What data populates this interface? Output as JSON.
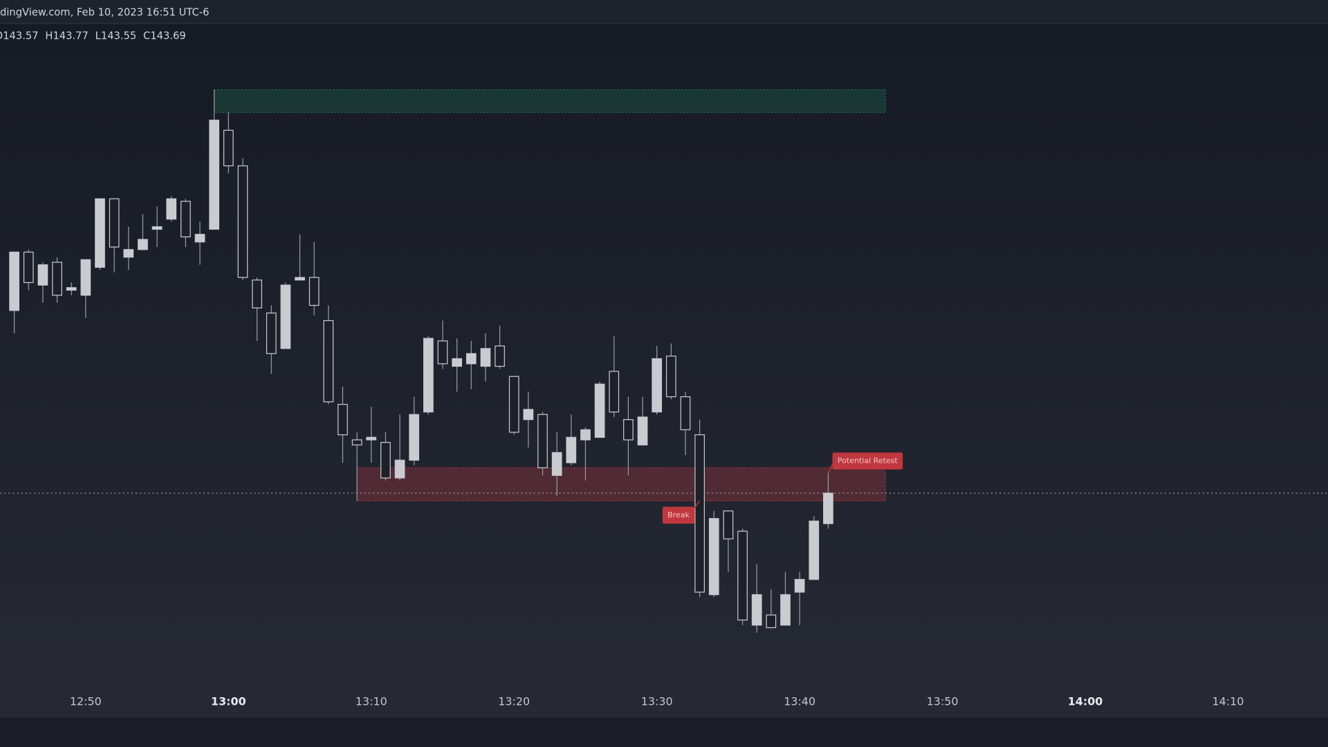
{
  "chart_data": {
    "type": "candlestick",
    "source": "dingView.com, Feb 10, 2023 16:51 UTC-6",
    "ohlc_labels": [
      "O",
      "H",
      "L",
      "C"
    ],
    "x": [
      "12:45",
      "12:46",
      "12:47",
      "12:48",
      "12:49",
      "12:50",
      "12:51",
      "12:52",
      "12:53",
      "12:54",
      "12:55",
      "12:56",
      "12:57",
      "12:58",
      "12:59",
      "13:00",
      "13:01",
      "13:02",
      "13:03",
      "13:04",
      "13:05",
      "13:06",
      "13:07",
      "13:08",
      "13:09",
      "13:10",
      "13:11",
      "13:12",
      "13:13",
      "13:14",
      "13:15",
      "13:16",
      "13:17",
      "13:18",
      "13:19",
      "13:20",
      "13:21",
      "13:22",
      "13:23",
      "13:24",
      "13:25",
      "13:26",
      "13:27",
      "13:28",
      "13:29",
      "13:30",
      "13:31",
      "13:32",
      "13:33",
      "13:34",
      "13:35",
      "13:36",
      "13:37",
      "13:38",
      "13:39",
      "13:40",
      "13:41",
      "13:42"
    ],
    "open": [
      144.41,
      144.64,
      144.51,
      144.6,
      144.49,
      144.47,
      144.58,
      144.85,
      144.62,
      144.65,
      144.73,
      144.77,
      144.84,
      144.68,
      144.73,
      145.12,
      144.98,
      144.53,
      144.4,
      144.26,
      144.53,
      144.54,
      144.37,
      144.04,
      143.9,
      143.9,
      143.89,
      143.75,
      143.82,
      144.01,
      144.29,
      144.19,
      144.2,
      144.19,
      144.27,
      144.15,
      143.98,
      144.0,
      143.76,
      143.81,
      143.9,
      143.91,
      144.17,
      143.98,
      143.88,
      144.01,
      144.23,
      144.07,
      143.92,
      143.29,
      143.62,
      143.54,
      143.17,
      143.21,
      143.17,
      143.3,
      143.35,
      143.57
    ],
    "high": [
      144.64,
      144.65,
      144.6,
      144.62,
      144.52,
      144.61,
      144.85,
      144.85,
      144.74,
      144.79,
      144.82,
      144.86,
      144.85,
      144.76,
      145.28,
      145.19,
      145.01,
      144.54,
      144.43,
      144.52,
      144.71,
      144.68,
      144.43,
      144.11,
      143.93,
      144.03,
      143.93,
      144.0,
      144.07,
      144.31,
      144.37,
      144.3,
      144.29,
      144.32,
      144.35,
      144.15,
      144.09,
      144.01,
      143.93,
      144.0,
      143.95,
      144.13,
      144.31,
      144.07,
      144.07,
      144.27,
      144.28,
      144.09,
      143.98,
      143.62,
      143.62,
      143.55,
      143.41,
      143.31,
      143.38,
      143.38,
      143.6,
      143.77
    ],
    "low": [
      144.32,
      144.49,
      144.44,
      144.44,
      144.47,
      144.38,
      144.57,
      144.56,
      144.57,
      144.65,
      144.66,
      144.76,
      144.66,
      144.59,
      144.73,
      144.95,
      144.53,
      144.29,
      144.16,
      144.26,
      144.53,
      144.39,
      144.04,
      143.81,
      143.66,
      143.81,
      143.74,
      143.74,
      143.8,
      144.0,
      144.18,
      144.09,
      144.1,
      144.13,
      144.18,
      143.92,
      143.87,
      143.76,
      143.68,
      143.8,
      143.74,
      143.91,
      143.99,
      143.76,
      143.88,
      144.0,
      144.06,
      143.84,
      143.28,
      143.28,
      143.38,
      143.17,
      143.14,
      143.16,
      143.17,
      143.17,
      143.35,
      143.55
    ],
    "close": [
      144.64,
      144.52,
      144.59,
      144.47,
      144.5,
      144.61,
      144.85,
      144.66,
      144.65,
      144.69,
      144.74,
      144.85,
      144.7,
      144.71,
      145.16,
      144.98,
      144.54,
      144.42,
      144.24,
      144.51,
      144.54,
      144.43,
      144.05,
      143.92,
      143.88,
      143.91,
      143.75,
      143.82,
      144.0,
      144.3,
      144.2,
      144.22,
      144.24,
      144.26,
      144.19,
      143.93,
      144.02,
      143.79,
      143.85,
      143.91,
      143.94,
      144.12,
      144.01,
      143.9,
      143.99,
      144.22,
      144.07,
      143.94,
      143.3,
      143.59,
      143.51,
      143.19,
      143.29,
      143.16,
      143.29,
      143.35,
      143.58,
      143.69
    ],
    "candle_color": "#c9cbd1",
    "wick_color": "#9a9ca4",
    "xlim": [
      "12:44",
      "14:17"
    ],
    "ylim": [
      142.93,
      145.54
    ],
    "xticks": [
      "12:50",
      "13:00",
      "13:10",
      "13:20",
      "13:30",
      "13:40",
      "13:50",
      "14:00",
      "14:10"
    ],
    "zones": [
      {
        "x": [
          "12:59",
          "13:46"
        ],
        "y": [
          145.19,
          145.28
        ],
        "color": "#1e6b4f"
      },
      {
        "x": [
          "13:09",
          "13:46"
        ],
        "y": [
          143.66,
          143.79
        ],
        "color": "#a8363f"
      }
    ],
    "annotations": [
      {
        "text": "Break",
        "x": "13:33",
        "y": 143.66
      },
      {
        "text": "Potential Retest",
        "x": "13:42",
        "y": 143.77
      }
    ],
    "annotation_color": "#c0373f"
  }
}
